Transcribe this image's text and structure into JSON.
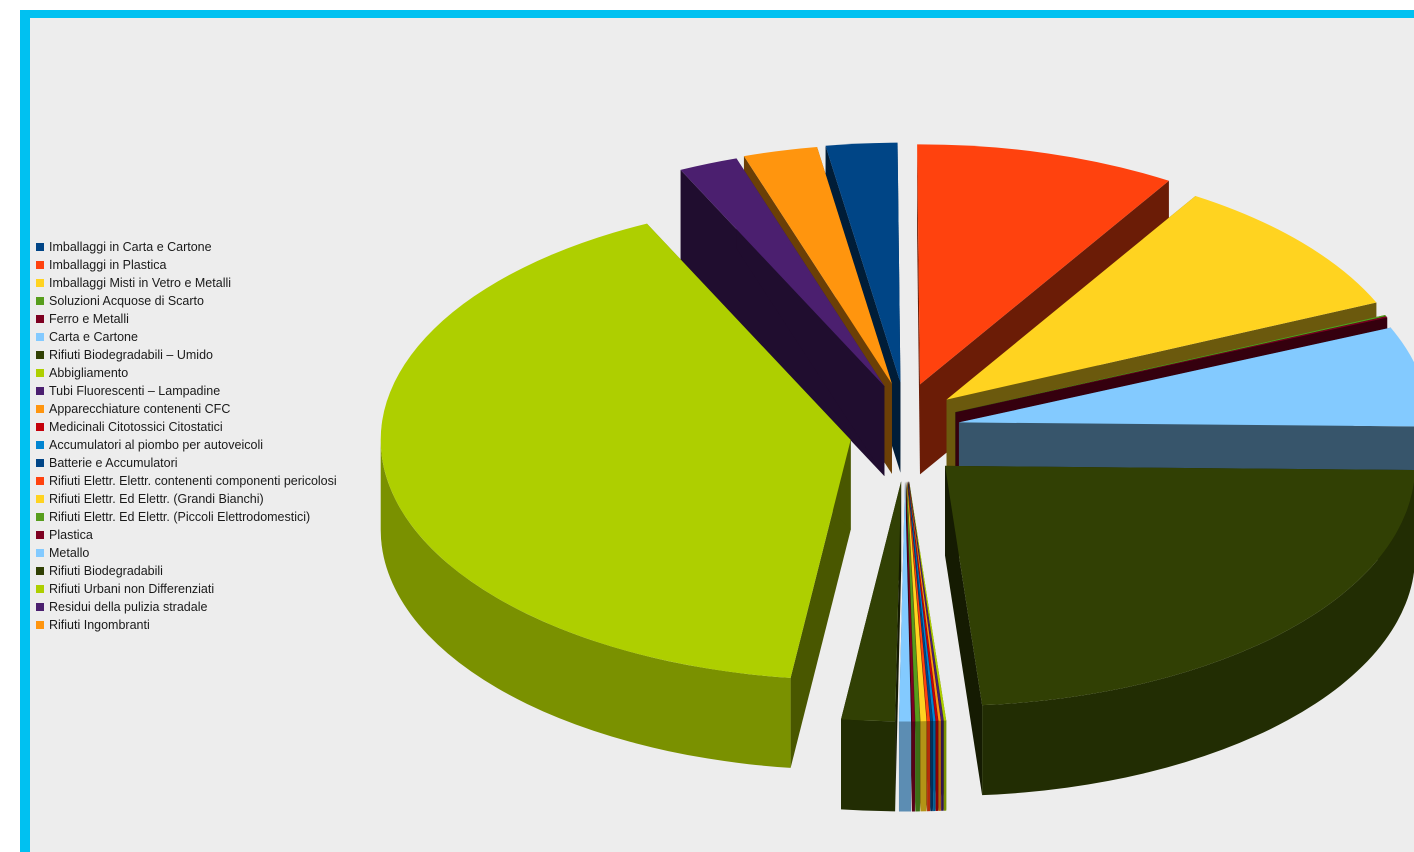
{
  "chart_data": {
    "type": "pie",
    "style": "3d-exploded",
    "legend_position": "left",
    "series": [
      {
        "label": "Imballaggi in Carta e Cartone",
        "value": 2.4,
        "color": "#004586"
      },
      {
        "label": "Imballaggi in Plastica",
        "value": 8.8,
        "color": "#ff420e"
      },
      {
        "label": "Imballaggi Misti in Vetro e Metalli",
        "value": 9.3,
        "color": "#ffd320"
      },
      {
        "label": "Soluzioni Acquose di Scarto",
        "value": 0.08,
        "color": "#579d1c"
      },
      {
        "label": "Ferro e Metalli",
        "value": 0.08,
        "color": "#7e0021"
      },
      {
        "label": "Carta e Cartone",
        "value": 6.6,
        "color": "#83caff"
      },
      {
        "label": "Rifiuti Biodegradabili – Umido",
        "value": 23.0,
        "color": "#314004"
      },
      {
        "label": "Abbigliamento",
        "value": 0.08,
        "color": "#aecf00"
      },
      {
        "label": "Tubi Fluorescenti – Lampadine",
        "value": 0.08,
        "color": "#4b1f6f"
      },
      {
        "label": "Apparecchiature contenenti CFC",
        "value": 0.08,
        "color": "#ff950e"
      },
      {
        "label": "Medicinali Citotossici Citostatici",
        "value": 0.08,
        "color": "#c5000b"
      },
      {
        "label": "Accumulatori al piombo per autoveicoli",
        "value": 0.08,
        "color": "#0084d1"
      },
      {
        "label": "Batterie e Accumulatori",
        "value": 0.08,
        "color": "#004586"
      },
      {
        "label": "Rifiuti Elettr. Elettr. contenenti componenti pericolosi",
        "value": 0.1,
        "color": "#ff420e"
      },
      {
        "label": "Rifiuti Elettr. Ed Elettr. (Grandi Bianchi)",
        "value": 0.2,
        "color": "#ffd320"
      },
      {
        "label": "Rifiuti Elettr. Ed Elettr. (Piccoli Elettrodomestici)",
        "value": 0.15,
        "color": "#579d1c"
      },
      {
        "label": "Plastica",
        "value": 0.1,
        "color": "#7e0021"
      },
      {
        "label": "Metallo",
        "value": 0.4,
        "color": "#83caff"
      },
      {
        "label": "Rifiuti Biodegradabili",
        "value": 1.8,
        "color": "#314004"
      },
      {
        "label": "Rifiuti Urbani non Differenziati",
        "value": 40.0,
        "color": "#aecf00"
      },
      {
        "label": "Residui della pulizia stradale",
        "value": 2.0,
        "color": "#4b1f6f"
      },
      {
        "label": "Rifiuti Ingombranti",
        "value": 2.5,
        "color": "#ff950e"
      }
    ]
  }
}
